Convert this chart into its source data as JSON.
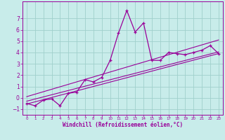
{
  "xlabel": "Windchill (Refroidissement éolien,°C)",
  "ylabel": "",
  "bg_color": "#c8ecea",
  "grid_color": "#a0d0cc",
  "line_color": "#990099",
  "x_data": [
    0,
    1,
    2,
    3,
    4,
    5,
    6,
    7,
    8,
    9,
    10,
    11,
    12,
    13,
    14,
    15,
    16,
    17,
    18,
    19,
    20,
    21,
    22,
    23
  ],
  "y_data": [
    -0.5,
    -0.7,
    -0.2,
    -0.1,
    -0.7,
    0.4,
    0.5,
    1.6,
    1.4,
    1.8,
    3.3,
    5.7,
    7.7,
    5.8,
    6.6,
    3.3,
    3.3,
    4.0,
    3.9,
    3.8,
    4.0,
    4.2,
    4.6,
    3.9
  ],
  "ylim": [
    -1.5,
    8.5
  ],
  "xlim": [
    -0.5,
    23.5
  ],
  "yticks": [
    -1,
    0,
    1,
    2,
    3,
    4,
    5,
    6,
    7
  ],
  "xticks": [
    0,
    1,
    2,
    3,
    4,
    5,
    6,
    7,
    8,
    9,
    10,
    11,
    12,
    13,
    14,
    15,
    16,
    17,
    18,
    19,
    20,
    21,
    22,
    23
  ],
  "reg_lines": [
    {
      "x0": 0,
      "x1": 23,
      "y0": -0.55,
      "y1": 3.9
    },
    {
      "x0": 0,
      "x1": 23,
      "y0": -0.3,
      "y1": 4.05
    },
    {
      "x0": 0,
      "x1": 23,
      "y0": 0.1,
      "y1": 5.1
    }
  ]
}
